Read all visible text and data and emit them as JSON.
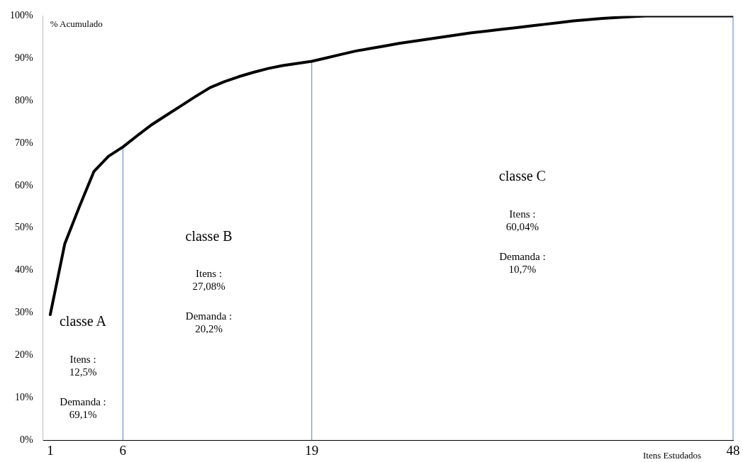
{
  "chart_data": {
    "type": "line",
    "xlabel": "Itens Estudados",
    "ylabel": "% Acumulado",
    "x": [
      1,
      2,
      3,
      4,
      5,
      6,
      7,
      8,
      9,
      10,
      11,
      12,
      13,
      14,
      15,
      16,
      17,
      18,
      19,
      20,
      21,
      22,
      23,
      24,
      25,
      26,
      27,
      28,
      29,
      30,
      31,
      32,
      33,
      34,
      35,
      36,
      37,
      38,
      39,
      40,
      41,
      42,
      43,
      44,
      45,
      46,
      47,
      48
    ],
    "series": [
      {
        "color": "#000000",
        "values": [
          29.6,
          46.3,
          55,
          63.3,
          66.9,
          69.1,
          71.8,
          74.4,
          76.6,
          78.8,
          81,
          83.1,
          84.5,
          85.7,
          86.7,
          87.6,
          88.3,
          88.8,
          89.3,
          90.1,
          90.9,
          91.7,
          92.3,
          92.9,
          93.5,
          94,
          94.5,
          95,
          95.5,
          96,
          96.4,
          96.8,
          97.2,
          97.6,
          98,
          98.4,
          98.8,
          99.1,
          99.4,
          99.6,
          99.8,
          100,
          100,
          100,
          100,
          100,
          100,
          100
        ]
      }
    ],
    "xlim": [
      0.5,
      48
    ],
    "xticks": [
      1,
      6,
      19,
      48
    ],
    "ylim": [
      0,
      100
    ],
    "yticks": [
      {
        "value": 0,
        "label": "0%"
      },
      {
        "value": 10,
        "label": "10%"
      },
      {
        "value": 20,
        "label": "20%"
      },
      {
        "value": 30,
        "label": "30%"
      },
      {
        "value": 40,
        "label": "40%"
      },
      {
        "value": 50,
        "label": "50%"
      },
      {
        "value": 60,
        "label": "60%"
      },
      {
        "value": 70,
        "label": "70%"
      },
      {
        "value": 80,
        "label": "80%"
      },
      {
        "value": 90,
        "label": "90%"
      },
      {
        "value": 100,
        "label": "100%"
      }
    ],
    "ref_lines": [
      {
        "axis": "x",
        "value": 6,
        "color": "#4f81bd"
      },
      {
        "axis": "x",
        "value": 19,
        "color": "#4f81bd"
      },
      {
        "axis": "x",
        "value": 48,
        "color": "#4f81bd"
      }
    ],
    "annotations": [
      "classe A",
      "Itens :",
      "12,5%",
      "Demanda :",
      "69,1%",
      "classe B",
      "Itens :",
      "27,08%",
      "Demanda :",
      "20,2%",
      "classe C",
      "Itens :",
      "60,04%",
      "Demanda :",
      "10,7%"
    ],
    "grid": false,
    "legend": false,
    "marker": "none",
    "line_style": "solid"
  }
}
